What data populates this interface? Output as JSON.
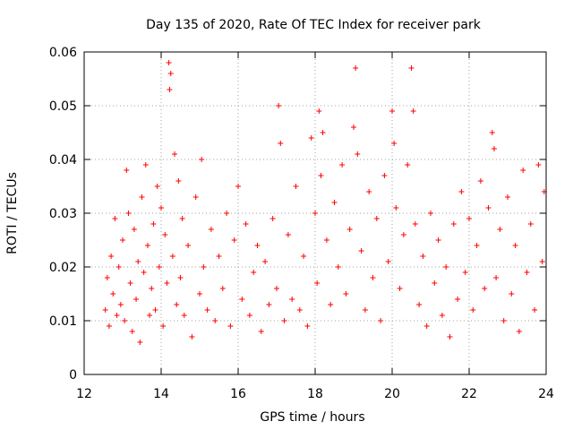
{
  "chart_data": {
    "type": "scatter",
    "title": "Day 135 of 2020, Rate Of TEC Index for receiver park",
    "xlabel": "GPS time / hours",
    "ylabel": "ROTI / TECUs",
    "xlim": [
      12,
      24
    ],
    "ylim": [
      0,
      0.06
    ],
    "x_ticks": [
      12,
      14,
      16,
      18,
      20,
      22,
      24
    ],
    "y_ticks": [
      0,
      0.01,
      0.02,
      0.03,
      0.04,
      0.05,
      0.06
    ],
    "x_tick_labels": [
      "12",
      "14",
      "16",
      "18",
      "20",
      "22",
      "24"
    ],
    "y_tick_labels": [
      "0",
      "0.01",
      "0.02",
      "0.03",
      "0.04",
      "0.05",
      "0.06"
    ],
    "grid": true,
    "marker": "plus",
    "color": "#ff0000",
    "data_x_range": [
      12.5,
      24
    ],
    "series": [
      {
        "points": [
          [
            12.55,
            0.012
          ],
          [
            12.6,
            0.018
          ],
          [
            12.65,
            0.009
          ],
          [
            12.7,
            0.022
          ],
          [
            12.75,
            0.015
          ],
          [
            12.8,
            0.029
          ],
          [
            12.85,
            0.011
          ],
          [
            12.9,
            0.02
          ],
          [
            12.95,
            0.013
          ],
          [
            13.0,
            0.025
          ],
          [
            13.05,
            0.01
          ],
          [
            13.1,
            0.038
          ],
          [
            13.15,
            0.03
          ],
          [
            13.2,
            0.017
          ],
          [
            13.25,
            0.008
          ],
          [
            13.3,
            0.027
          ],
          [
            13.35,
            0.014
          ],
          [
            13.4,
            0.021
          ],
          [
            13.45,
            0.006
          ],
          [
            13.5,
            0.033
          ],
          [
            13.55,
            0.019
          ],
          [
            13.6,
            0.039
          ],
          [
            13.65,
            0.024
          ],
          [
            13.7,
            0.011
          ],
          [
            13.75,
            0.016
          ],
          [
            13.8,
            0.028
          ],
          [
            13.85,
            0.012
          ],
          [
            13.9,
            0.035
          ],
          [
            13.95,
            0.02
          ],
          [
            14.0,
            0.031
          ],
          [
            14.05,
            0.009
          ],
          [
            14.1,
            0.026
          ],
          [
            14.15,
            0.017
          ],
          [
            14.2,
            0.058
          ],
          [
            14.22,
            0.053
          ],
          [
            14.25,
            0.056
          ],
          [
            14.3,
            0.022
          ],
          [
            14.35,
            0.041
          ],
          [
            14.4,
            0.013
          ],
          [
            14.45,
            0.036
          ],
          [
            14.5,
            0.018
          ],
          [
            14.55,
            0.029
          ],
          [
            14.6,
            0.011
          ],
          [
            14.7,
            0.024
          ],
          [
            14.8,
            0.007
          ],
          [
            14.9,
            0.033
          ],
          [
            15.0,
            0.015
          ],
          [
            15.05,
            0.04
          ],
          [
            15.1,
            0.02
          ],
          [
            15.2,
            0.012
          ],
          [
            15.3,
            0.027
          ],
          [
            15.4,
            0.01
          ],
          [
            15.5,
            0.022
          ],
          [
            15.6,
            0.016
          ],
          [
            15.7,
            0.03
          ],
          [
            15.8,
            0.009
          ],
          [
            15.9,
            0.025
          ],
          [
            16.0,
            0.035
          ],
          [
            16.1,
            0.014
          ],
          [
            16.2,
            0.028
          ],
          [
            16.3,
            0.011
          ],
          [
            16.4,
            0.019
          ],
          [
            16.5,
            0.024
          ],
          [
            16.6,
            0.008
          ],
          [
            16.7,
            0.021
          ],
          [
            16.8,
            0.013
          ],
          [
            16.9,
            0.029
          ],
          [
            17.0,
            0.016
          ],
          [
            17.05,
            0.05
          ],
          [
            17.1,
            0.043
          ],
          [
            17.2,
            0.01
          ],
          [
            17.3,
            0.026
          ],
          [
            17.4,
            0.014
          ],
          [
            17.5,
            0.035
          ],
          [
            17.6,
            0.012
          ],
          [
            17.7,
            0.022
          ],
          [
            17.8,
            0.009
          ],
          [
            17.9,
            0.044
          ],
          [
            18.0,
            0.03
          ],
          [
            18.05,
            0.017
          ],
          [
            18.1,
            0.049
          ],
          [
            18.15,
            0.037
          ],
          [
            18.2,
            0.045
          ],
          [
            18.3,
            0.025
          ],
          [
            18.4,
            0.013
          ],
          [
            18.5,
            0.032
          ],
          [
            18.6,
            0.02
          ],
          [
            18.7,
            0.039
          ],
          [
            18.8,
            0.015
          ],
          [
            18.9,
            0.027
          ],
          [
            19.0,
            0.046
          ],
          [
            19.05,
            0.057
          ],
          [
            19.1,
            0.041
          ],
          [
            19.2,
            0.023
          ],
          [
            19.3,
            0.012
          ],
          [
            19.4,
            0.034
          ],
          [
            19.5,
            0.018
          ],
          [
            19.6,
            0.029
          ],
          [
            19.7,
            0.01
          ],
          [
            19.8,
            0.037
          ],
          [
            19.9,
            0.021
          ],
          [
            20.0,
            0.049
          ],
          [
            20.05,
            0.043
          ],
          [
            20.1,
            0.031
          ],
          [
            20.2,
            0.016
          ],
          [
            20.3,
            0.026
          ],
          [
            20.4,
            0.039
          ],
          [
            20.5,
            0.057
          ],
          [
            20.55,
            0.049
          ],
          [
            20.6,
            0.028
          ],
          [
            20.7,
            0.013
          ],
          [
            20.8,
            0.022
          ],
          [
            20.9,
            0.009
          ],
          [
            21.0,
            0.03
          ],
          [
            21.1,
            0.017
          ],
          [
            21.2,
            0.025
          ],
          [
            21.3,
            0.011
          ],
          [
            21.4,
            0.02
          ],
          [
            21.5,
            0.007
          ],
          [
            21.6,
            0.028
          ],
          [
            21.7,
            0.014
          ],
          [
            21.8,
            0.034
          ],
          [
            21.9,
            0.019
          ],
          [
            22.0,
            0.029
          ],
          [
            22.1,
            0.012
          ],
          [
            22.2,
            0.024
          ],
          [
            22.3,
            0.036
          ],
          [
            22.4,
            0.016
          ],
          [
            22.5,
            0.031
          ],
          [
            22.6,
            0.045
          ],
          [
            22.65,
            0.042
          ],
          [
            22.7,
            0.018
          ],
          [
            22.8,
            0.027
          ],
          [
            22.9,
            0.01
          ],
          [
            23.0,
            0.033
          ],
          [
            23.1,
            0.015
          ],
          [
            23.2,
            0.024
          ],
          [
            23.3,
            0.008
          ],
          [
            23.4,
            0.038
          ],
          [
            23.5,
            0.019
          ],
          [
            23.6,
            0.028
          ],
          [
            23.7,
            0.012
          ],
          [
            23.8,
            0.039
          ],
          [
            23.9,
            0.021
          ],
          [
            23.95,
            0.034
          ]
        ]
      }
    ]
  }
}
